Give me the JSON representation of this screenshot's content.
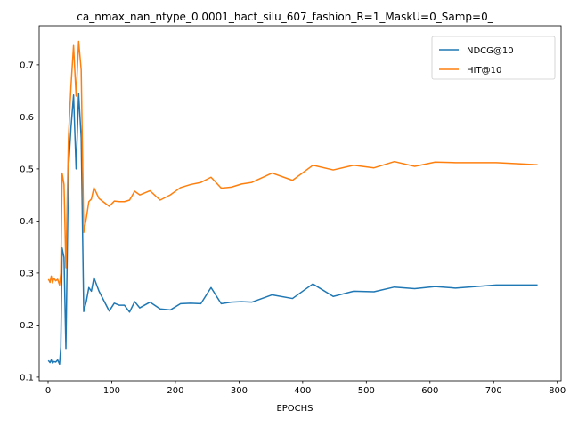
{
  "chart_data": {
    "type": "line",
    "title": "ca_nmax_nan_ntype_0.0001_hact_silu_607_fashion_R=1_MaskU=0_Samp=0_",
    "xlabel": "EPOCHS",
    "ylabel": "",
    "xlim": [
      -14,
      806
    ],
    "ylim": [
      0.093,
      0.775
    ],
    "xticks": [
      0,
      100,
      200,
      300,
      400,
      500,
      600,
      700,
      800
    ],
    "yticks": [
      0.1,
      0.2,
      0.3,
      0.4,
      0.5,
      0.6,
      0.7
    ],
    "ytick_labels": [
      "0.1",
      "0.2",
      "0.3",
      "0.4",
      "0.5",
      "0.6",
      "0.7"
    ],
    "grid": false,
    "legend_position": "top-right",
    "series": [
      {
        "name": "NDCG@10",
        "color": "#1f77b4",
        "x": [
          1,
          3,
          5,
          7,
          9,
          12,
          15,
          18,
          20,
          22,
          25,
          28,
          32,
          36,
          40,
          44,
          48,
          52,
          56,
          60,
          64,
          68,
          72,
          80,
          96,
          104,
          112,
          120,
          128,
          136,
          144,
          160,
          176,
          192,
          208,
          224,
          240,
          256,
          272,
          288,
          304,
          320,
          352,
          384,
          416,
          448,
          480,
          512,
          544,
          576,
          608,
          640,
          672,
          704,
          736,
          768
        ],
        "y": [
          0.131,
          0.128,
          0.133,
          0.127,
          0.13,
          0.129,
          0.133,
          0.125,
          0.158,
          0.348,
          0.33,
          0.155,
          0.5,
          0.58,
          0.642,
          0.5,
          0.645,
          0.56,
          0.226,
          0.245,
          0.272,
          0.265,
          0.291,
          0.265,
          0.227,
          0.242,
          0.238,
          0.238,
          0.225,
          0.245,
          0.233,
          0.244,
          0.231,
          0.229,
          0.241,
          0.242,
          0.241,
          0.272,
          0.241,
          0.244,
          0.245,
          0.244,
          0.258,
          0.251,
          0.279,
          0.255,
          0.265,
          0.264,
          0.273,
          0.27,
          0.274,
          0.271,
          0.274,
          0.277,
          0.277,
          0.277
        ]
      },
      {
        "name": "HIT@10",
        "color": "#ff7f0e",
        "x": [
          1,
          3,
          5,
          7,
          9,
          12,
          15,
          18,
          20,
          22,
          25,
          28,
          32,
          36,
          40,
          44,
          48,
          52,
          56,
          60,
          64,
          68,
          72,
          80,
          96,
          104,
          112,
          120,
          128,
          136,
          144,
          160,
          176,
          192,
          208,
          224,
          240,
          256,
          272,
          288,
          304,
          320,
          352,
          384,
          416,
          448,
          480,
          512,
          544,
          576,
          608,
          640,
          672,
          704,
          736,
          768
        ],
        "y": [
          0.287,
          0.282,
          0.294,
          0.281,
          0.29,
          0.285,
          0.288,
          0.277,
          0.3,
          0.492,
          0.47,
          0.31,
          0.56,
          0.66,
          0.737,
          0.64,
          0.745,
          0.69,
          0.378,
          0.405,
          0.437,
          0.442,
          0.464,
          0.443,
          0.428,
          0.438,
          0.437,
          0.437,
          0.44,
          0.457,
          0.45,
          0.458,
          0.44,
          0.45,
          0.464,
          0.47,
          0.474,
          0.484,
          0.463,
          0.465,
          0.471,
          0.474,
          0.492,
          0.478,
          0.507,
          0.498,
          0.507,
          0.502,
          0.514,
          0.505,
          0.513,
          0.512,
          0.512,
          0.512,
          0.51,
          0.508
        ]
      }
    ]
  }
}
